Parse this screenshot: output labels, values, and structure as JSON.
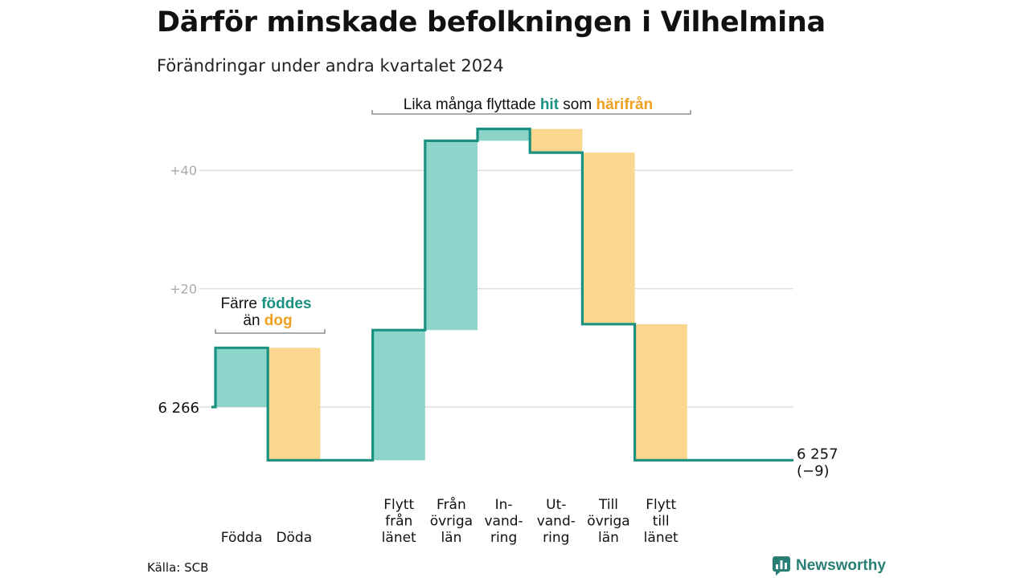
{
  "title": "Därför minskade befolkningen i Vilhelmina",
  "subtitle": "Förändringar under andra kvartalet 2024",
  "source": "Källa: SCB",
  "brand": "Newsworthy",
  "colors": {
    "in": "#8dd5cb",
    "out": "#fbd68e",
    "line": "#1a9180",
    "in_text": "#1a9180",
    "out_text": "#f0a020",
    "grid": "#dddddd",
    "tick": "#aaaaaa"
  },
  "annotations": {
    "moves": {
      "text1": "Lika många flyttade",
      "hl1": "hit",
      "text2": "som",
      "hl2": "härifrån"
    },
    "births": {
      "text1": "Färre",
      "hl1": "föddes",
      "text2": "än",
      "hl2": "dog"
    }
  },
  "chart_data": {
    "type": "bar",
    "subtype": "waterfall",
    "baseline": 6266,
    "start_label": "6 266",
    "end_label": "6 257",
    "end_change_label": "(−9)",
    "y_ticks": [
      {
        "value": 20,
        "label": "+20"
      },
      {
        "value": 40,
        "label": "+40"
      }
    ],
    "ylim": [
      -11,
      49
    ],
    "grid": true,
    "steps": [
      {
        "category": [
          "Födda"
        ],
        "change": 10,
        "kind": "in"
      },
      {
        "category": [
          "Döda"
        ],
        "change": -19,
        "kind": "out"
      },
      {
        "category": [],
        "change": 0,
        "kind": "gap"
      },
      {
        "category": [
          "Flytt",
          "från",
          "länet"
        ],
        "change": 22,
        "kind": "in"
      },
      {
        "category": [
          "Från",
          "övriga",
          "län"
        ],
        "change": 32,
        "kind": "in"
      },
      {
        "category": [
          "In-",
          "vand-",
          "ring"
        ],
        "change": 2,
        "kind": "in"
      },
      {
        "category": [
          "Ut-",
          "vand-",
          "ring"
        ],
        "change": -4,
        "kind": "out"
      },
      {
        "category": [
          "Till",
          "övriga",
          "län"
        ],
        "change": -29,
        "kind": "out"
      },
      {
        "category": [
          "Flytt",
          "till",
          "länet"
        ],
        "change": -23,
        "kind": "out"
      }
    ]
  }
}
